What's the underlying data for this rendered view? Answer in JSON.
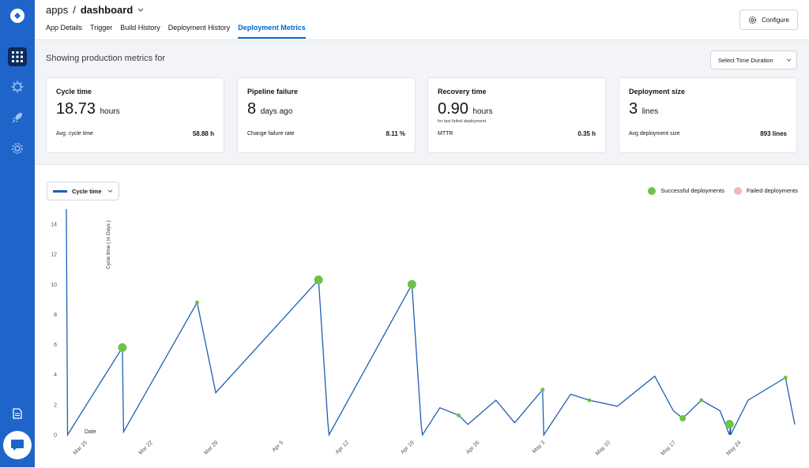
{
  "header": {
    "app": "apps",
    "page": "dashboard",
    "tabs": [
      {
        "label": "App Details"
      },
      {
        "label": "Trigger"
      },
      {
        "label": "Build History"
      },
      {
        "label": "Deployment History"
      },
      {
        "label": "Deployment Metrics"
      }
    ],
    "configure_label": "Configure"
  },
  "subheader": {
    "showing_text": "Showing production metrics for",
    "duration_placeholder": "Select Time Duration"
  },
  "cards": [
    {
      "title": "Cycle time",
      "value": "18.73",
      "unit": "hours",
      "sub": "",
      "label": "Avg. cycle time",
      "metric": "58.88 h"
    },
    {
      "title": "Pipeline failure",
      "value": "8",
      "unit": "days ago",
      "sub": "",
      "label": "Change failure rate",
      "metric": "8.11 %"
    },
    {
      "title": "Recovery time",
      "value": "0.90",
      "unit": "hours",
      "sub": "for last failed deployment",
      "label": "MTTR",
      "metric": "0.35 h"
    },
    {
      "title": "Deployment size",
      "value": "3",
      "unit": "lines",
      "sub": "",
      "label": "Avg deployment size",
      "metric": "893 lines"
    }
  ],
  "chart_controls": {
    "series_label": "Cycle time",
    "legend_success": "Successful deployments",
    "legend_failed": "Failed deployments"
  },
  "colors": {
    "line": "#1f5fb4",
    "success": "#6cc24a",
    "failed": "#f4b6b6",
    "accent": "#0066cc"
  },
  "chart_data": {
    "type": "line",
    "title": "",
    "ylabel": "Cycle time ( in Days )",
    "xlabel": "Date",
    "ylim": [
      0,
      15
    ],
    "yticks": [
      0,
      2,
      4,
      6,
      8,
      10,
      12,
      14
    ],
    "xlim": [
      "2021-03-13",
      "2021-05-30"
    ],
    "xticks": [
      {
        "date": "2021-03-15",
        "label": "Mar 15"
      },
      {
        "date": "2021-03-22",
        "label": "Mar 22"
      },
      {
        "date": "2021-03-29",
        "label": "Mar 29"
      },
      {
        "date": "2021-04-05",
        "label": "Apr 5"
      },
      {
        "date": "2021-04-12",
        "label": "Apr 12"
      },
      {
        "date": "2021-04-19",
        "label": "Apr 19"
      },
      {
        "date": "2021-04-26",
        "label": "Apr 26"
      },
      {
        "date": "2021-05-03",
        "label": "May 3"
      },
      {
        "date": "2021-05-10",
        "label": "May 10"
      },
      {
        "date": "2021-05-17",
        "label": "May 17"
      },
      {
        "date": "2021-05-24",
        "label": "May 24"
      }
    ],
    "series": [
      {
        "points": [
          [
            "2021-03-13",
            15.0
          ],
          [
            "2021-03-13",
            0.0
          ],
          [
            "2021-03-19",
            5.8
          ],
          [
            "2021-03-19",
            0.2
          ],
          [
            "2021-03-27",
            8.8
          ],
          [
            "2021-03-29",
            2.8
          ],
          [
            "2021-04-09",
            10.3
          ],
          [
            "2021-04-10",
            0.8
          ],
          [
            "2021-04-10",
            0.0
          ],
          [
            "2021-04-19",
            10.0
          ],
          [
            "2021-04-20",
            0.6
          ],
          [
            "2021-04-20",
            0.0
          ],
          [
            "2021-04-22",
            1.8
          ],
          [
            "2021-04-24",
            1.3
          ],
          [
            "2021-04-25",
            0.7
          ],
          [
            "2021-04-28",
            2.3
          ],
          [
            "2021-04-30",
            0.8
          ],
          [
            "2021-05-03",
            3.0
          ],
          [
            "2021-05-03",
            0.0
          ],
          [
            "2021-05-06",
            2.7
          ],
          [
            "2021-05-08",
            2.3
          ],
          [
            "2021-05-11",
            1.9
          ],
          [
            "2021-05-15",
            3.9
          ],
          [
            "2021-05-17",
            1.6
          ],
          [
            "2021-05-18",
            1.1
          ],
          [
            "2021-05-20",
            2.3
          ],
          [
            "2021-05-22",
            1.6
          ],
          [
            "2021-05-23",
            0.0
          ],
          [
            "2021-05-23",
            0.7
          ],
          [
            "2021-05-23",
            0.0
          ],
          [
            "2021-05-25",
            2.3
          ],
          [
            "2021-05-29",
            3.8
          ],
          [
            "2021-05-30",
            0.7
          ]
        ]
      }
    ],
    "deployments": [
      {
        "date": "2021-03-19",
        "y": 5.8,
        "status": "success",
        "size": "large"
      },
      {
        "date": "2021-03-27",
        "y": 8.8,
        "status": "success",
        "size": "small"
      },
      {
        "date": "2021-04-09",
        "y": 10.3,
        "status": "success",
        "size": "large"
      },
      {
        "date": "2021-04-19",
        "y": 10.0,
        "status": "success",
        "size": "large"
      },
      {
        "date": "2021-04-24",
        "y": 1.3,
        "status": "success",
        "size": "small"
      },
      {
        "date": "2021-05-03",
        "y": 3.0,
        "status": "success",
        "size": "small"
      },
      {
        "date": "2021-05-08",
        "y": 2.3,
        "status": "success",
        "size": "small"
      },
      {
        "date": "2021-05-18",
        "y": 1.1,
        "status": "success",
        "size": "medium"
      },
      {
        "date": "2021-05-20",
        "y": 2.3,
        "status": "success",
        "size": "small"
      },
      {
        "date": "2021-05-23",
        "y": 0.7,
        "status": "success",
        "size": "large"
      },
      {
        "date": "2021-05-29",
        "y": 3.8,
        "status": "success",
        "size": "small"
      }
    ],
    "grid": false,
    "legend_position": "top-right"
  }
}
